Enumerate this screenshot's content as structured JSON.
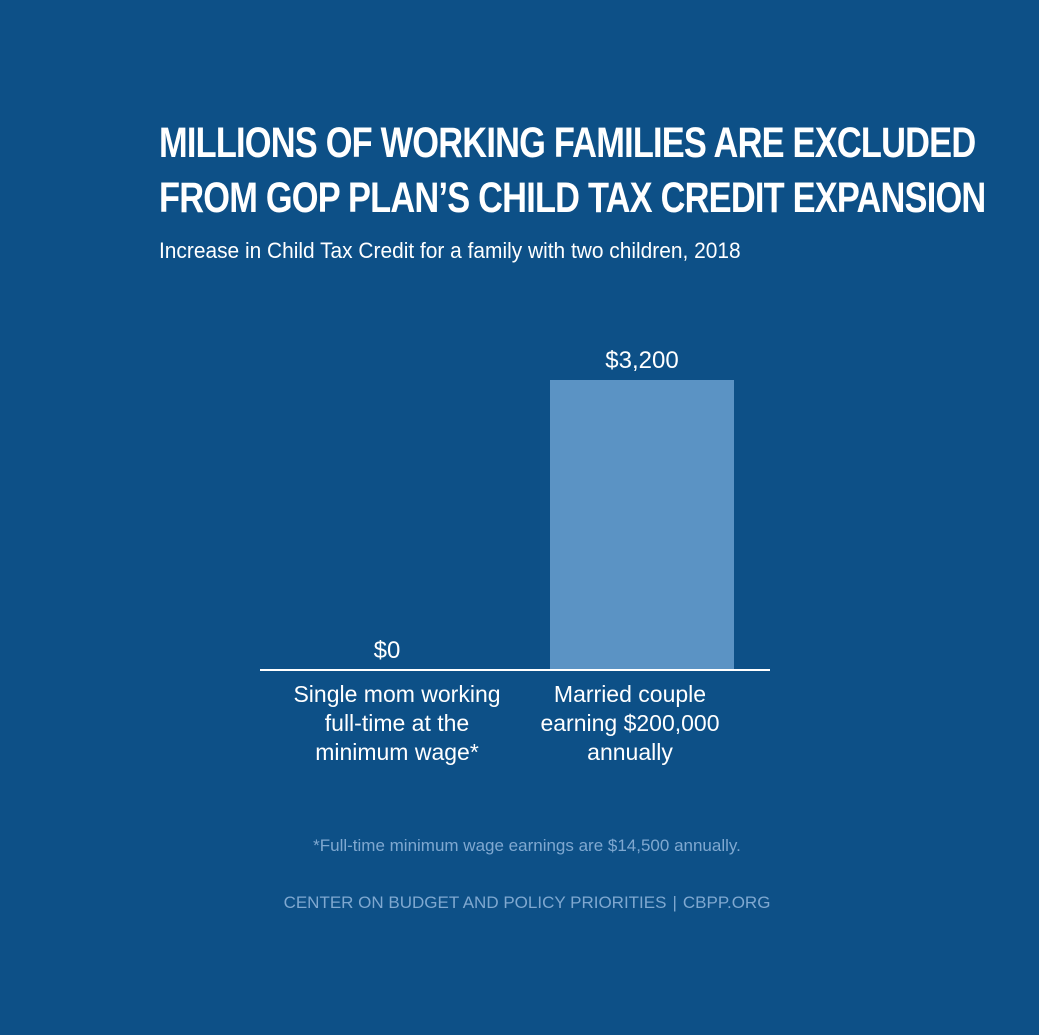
{
  "title_lines": [
    "MILLIONS OF WORKING FAMILIES ARE EXCLUDED",
    "FROM GOP PLAN’S CHILD TAX CREDIT EXPANSION"
  ],
  "subtitle": "Increase in Child Tax Credit for a family with two children, 2018",
  "chart_data": {
    "type": "bar",
    "categories": [
      [
        "Single mom working",
        "full-time at the",
        "minimum wage*"
      ],
      [
        "Married couple",
        "earning $200,000",
        "annually"
      ]
    ],
    "values": [
      0,
      3200
    ],
    "value_labels": [
      "$0",
      "$3,200"
    ],
    "ylim": [
      0,
      3200
    ],
    "grid": false,
    "colors": {
      "bar": "#5b93c4",
      "baseline": "#ffffff",
      "background": "#0d5087"
    }
  },
  "footnote": "*Full-time minimum wage earnings are $14,500 annually.",
  "source": {
    "org": "CENTER ON BUDGET AND POLICY PRIORITIES",
    "separator": "|",
    "site": "CBPP.ORG"
  }
}
